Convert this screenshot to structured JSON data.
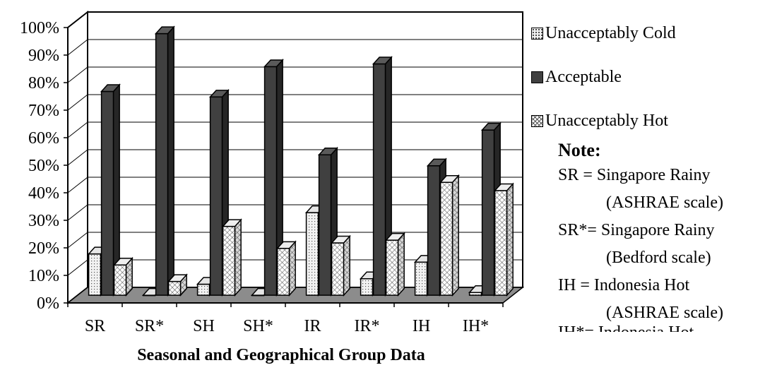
{
  "chart_data": {
    "type": "bar",
    "subtype": "3d-clustered",
    "categories": [
      "SR",
      "SR*",
      "SH",
      "SH*",
      "IR",
      "IR*",
      "IH",
      "IH*"
    ],
    "series": [
      {
        "name": "Unacceptably Cold",
        "values": [
          15,
          0,
          4,
          0,
          30,
          6,
          12,
          1
        ]
      },
      {
        "name": "Acceptable",
        "values": [
          74,
          95,
          72,
          83,
          51,
          84,
          47,
          60
        ]
      },
      {
        "name": "Unacceptably Hot",
        "values": [
          11,
          5,
          25,
          17,
          19,
          20,
          41,
          38
        ]
      }
    ],
    "xlabel": "Seasonal and Geographical Group Data",
    "ylabel": "",
    "ylim": [
      0,
      100
    ],
    "yticks": [
      "0%",
      "10%",
      "20%",
      "30%",
      "40%",
      "50%",
      "60%",
      "70%",
      "80%",
      "90%",
      "100%"
    ],
    "grid": true,
    "legend_position": "right",
    "colors": {
      "cold": "#f2f2f2",
      "acceptable": "#404040",
      "hot": "#ffffff",
      "floor": "#8c8c8c"
    }
  },
  "note": {
    "title": "Note:",
    "lines": [
      "SR  = Singapore Rainy",
      "(ASHRAE scale)",
      "SR*= Singapore Rainy",
      "(Bedford scale)",
      "IH  = Indonesia Hot",
      "(ASHRAE scale)",
      "IH*= Indonesia Hot"
    ]
  }
}
